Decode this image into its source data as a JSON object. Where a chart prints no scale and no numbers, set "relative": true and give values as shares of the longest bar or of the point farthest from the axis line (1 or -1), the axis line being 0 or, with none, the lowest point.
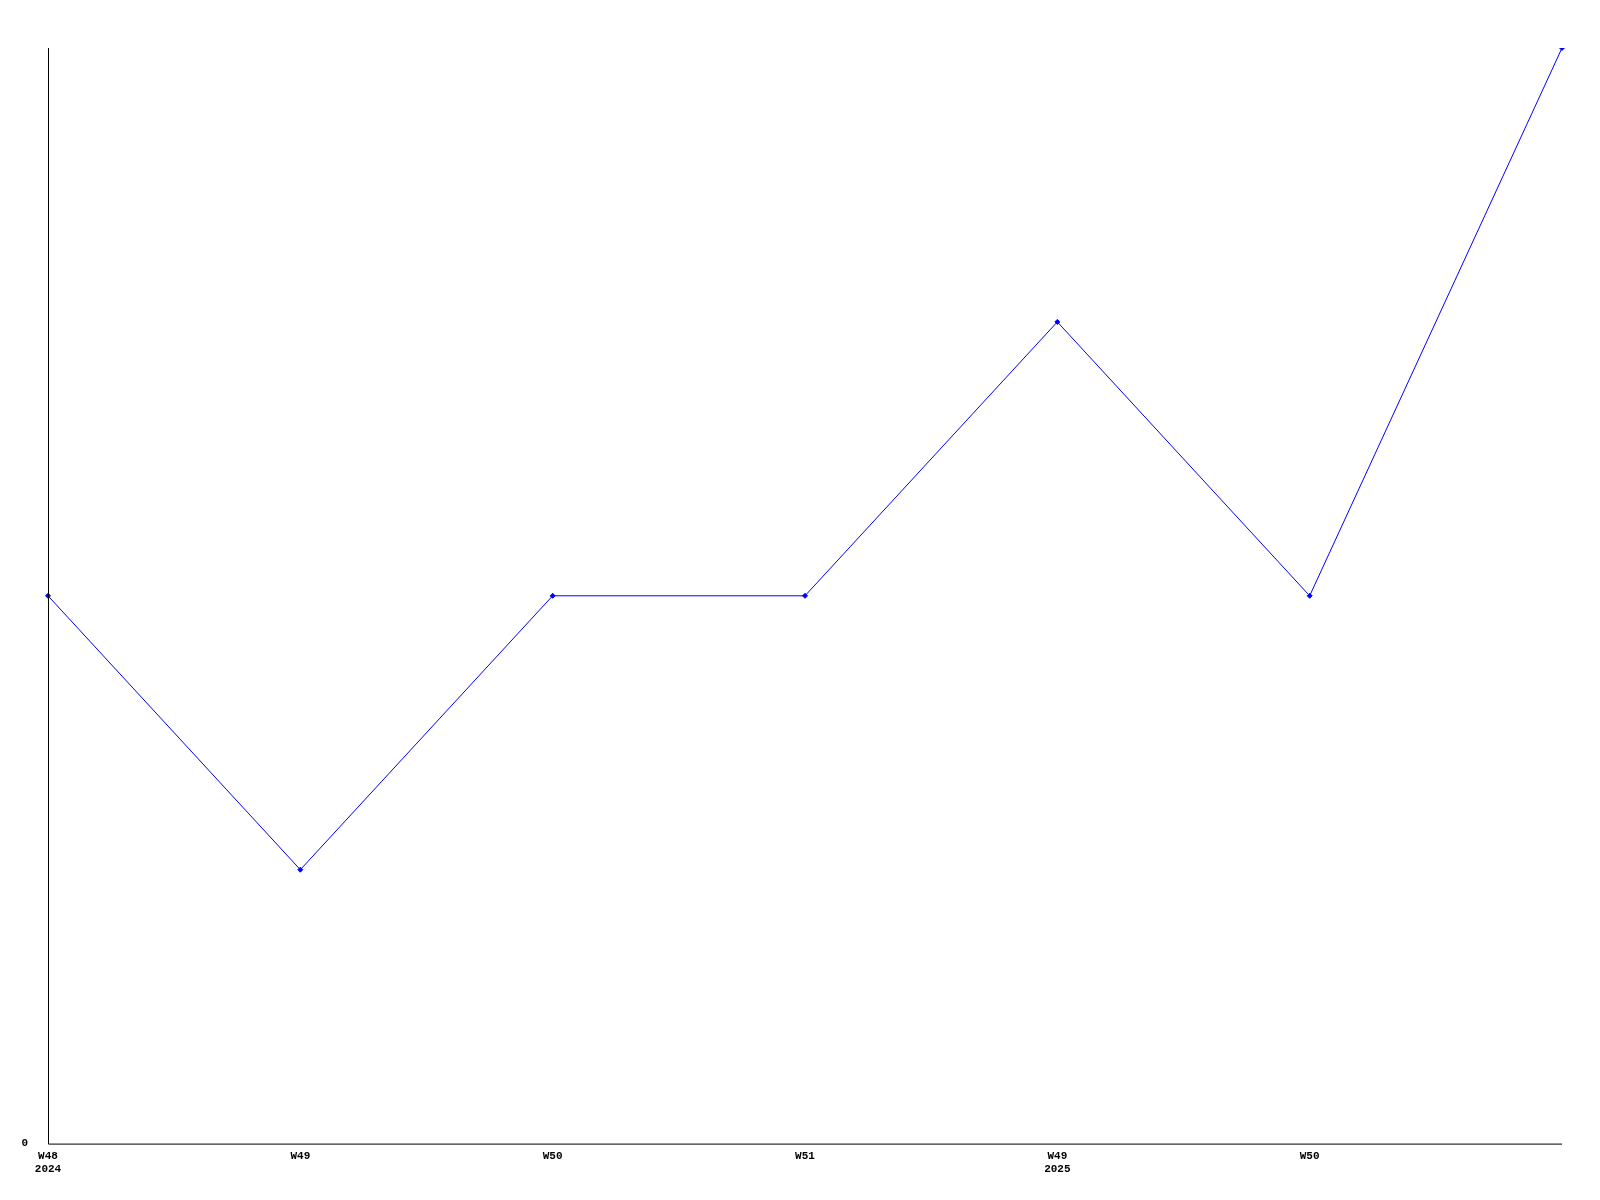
{
  "chart_data": {
    "type": "line",
    "relative": true,
    "categories": [
      "W48\n2024",
      "W49",
      "W50",
      "W51",
      "W49\n2025",
      "W50",
      null
    ],
    "series": [
      {
        "color": "#0000ff",
        "values": [
          0.5,
          0.25,
          0.5,
          0.5,
          0.75,
          0.5,
          1.0
        ]
      }
    ],
    "annotations": [
      "0"
    ],
    "grid": false,
    "legend": false,
    "marker": "diamond",
    "line_style": "solid"
  }
}
